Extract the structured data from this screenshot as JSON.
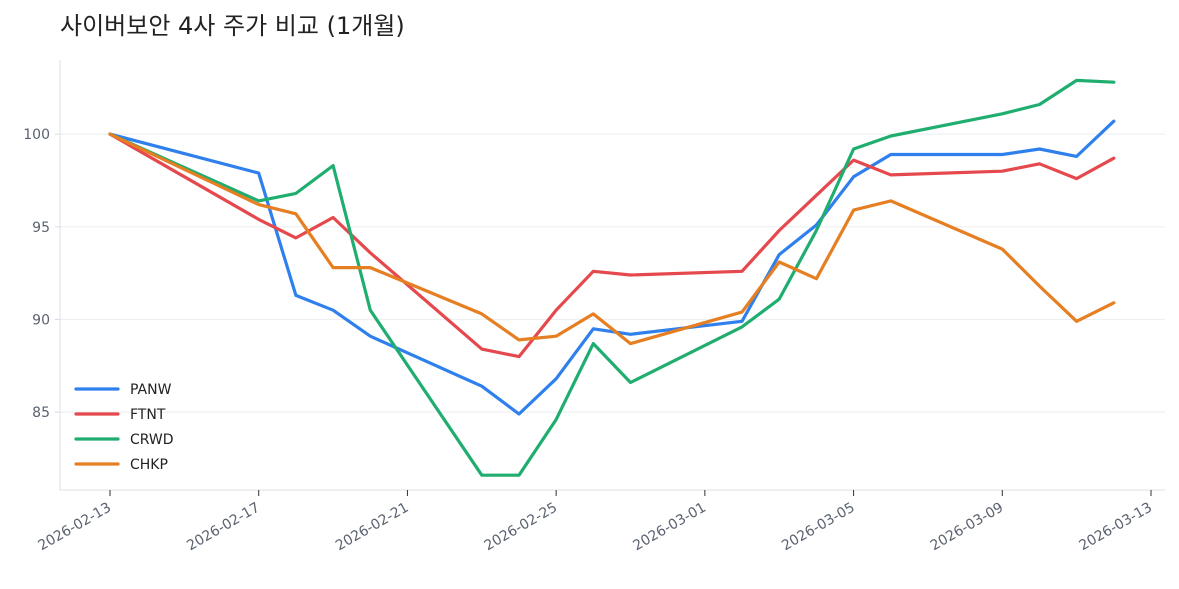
{
  "chart_data": {
    "type": "line",
    "title": "사이버보안 4사 주가 비교 (1개월)",
    "xlabel": "",
    "ylabel": "",
    "x": [
      "2026-02-13",
      "2026-02-17",
      "2026-02-18",
      "2026-02-19",
      "2026-02-20",
      "2026-02-23",
      "2026-02-24",
      "2026-02-25",
      "2026-02-26",
      "2026-02-27",
      "2026-03-02",
      "2026-03-03",
      "2026-03-04",
      "2026-03-05",
      "2026-03-06",
      "2026-03-09",
      "2026-03-10",
      "2026-03-11",
      "2026-03-12"
    ],
    "x_ticks": [
      "2026-02-13",
      "2026-02-17",
      "2026-02-21",
      "2026-02-25",
      "2026-03-01",
      "2026-03-05",
      "2026-03-09",
      "2026-03-13"
    ],
    "x_range": [
      "2026-02-12",
      "2026-03-13"
    ],
    "ylim": [
      80.8,
      104.0
    ],
    "y_ticks": [
      85,
      90,
      95,
      100
    ],
    "grid": "horizontal",
    "legend_position": "lower-left",
    "series": [
      {
        "name": "PANW",
        "color": "#2f80ed",
        "values": [
          100.0,
          97.9,
          91.3,
          90.5,
          89.1,
          86.4,
          84.9,
          86.8,
          89.5,
          89.2,
          89.9,
          93.5,
          95.1,
          97.7,
          98.9,
          98.9,
          99.2,
          98.8,
          100.7
        ]
      },
      {
        "name": "FTNT",
        "color": "#e5484d",
        "values": [
          100.0,
          95.4,
          94.4,
          95.5,
          93.6,
          88.4,
          88.0,
          90.5,
          92.6,
          92.4,
          92.6,
          94.8,
          96.7,
          98.6,
          97.8,
          98.0,
          98.4,
          97.6,
          98.7
        ]
      },
      {
        "name": "CRWD",
        "color": "#1fae6f",
        "values": [
          100.0,
          96.4,
          96.8,
          98.3,
          90.5,
          81.6,
          81.6,
          84.6,
          88.7,
          86.6,
          89.6,
          91.1,
          94.8,
          99.2,
          99.9,
          101.1,
          101.6,
          102.9,
          102.8
        ]
      },
      {
        "name": "CHKP",
        "color": "#e67e22",
        "values": [
          100.0,
          96.2,
          95.7,
          92.8,
          92.8,
          90.3,
          88.9,
          89.1,
          90.3,
          88.7,
          90.4,
          93.1,
          92.2,
          95.9,
          96.4,
          93.8,
          91.8,
          89.9,
          90.9
        ]
      }
    ]
  }
}
